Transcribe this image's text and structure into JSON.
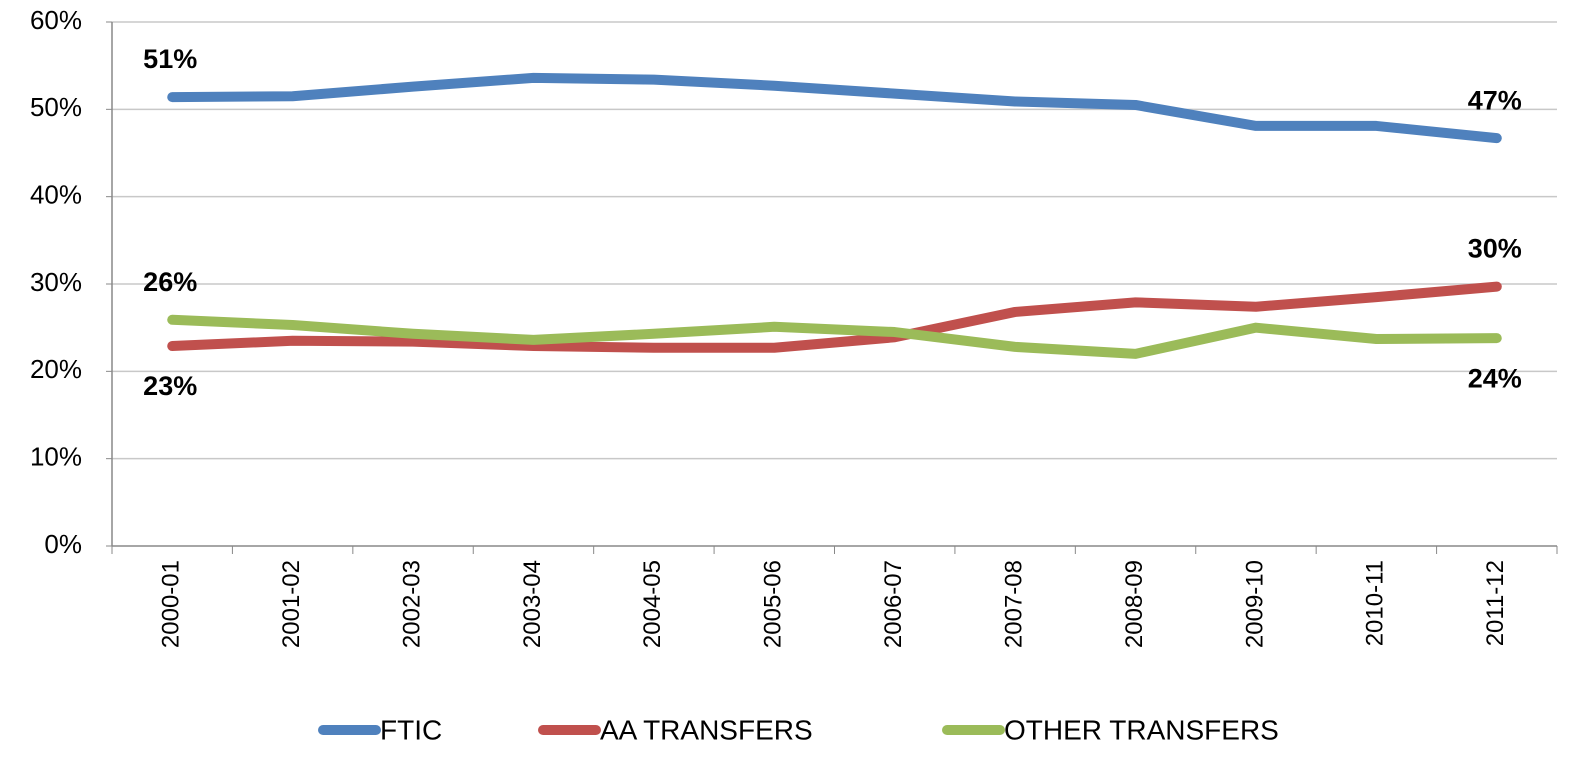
{
  "chart_data": {
    "type": "line",
    "categories": [
      "2000-01",
      "2001-02",
      "2002-03",
      "2003-04",
      "2004-05",
      "2005-06",
      "2006-07",
      "2007-08",
      "2008-09",
      "2009-10",
      "2010-11",
      "2011-12"
    ],
    "series": [
      {
        "name": "FTIC",
        "color": "#4f81bd",
        "values": [
          51.4,
          51.5,
          52.6,
          53.6,
          53.4,
          52.7,
          51.8,
          50.9,
          50.5,
          48.1,
          48.1,
          46.7
        ],
        "value_labels": [
          "51%",
          null,
          null,
          null,
          null,
          null,
          null,
          null,
          null,
          null,
          null,
          "47%"
        ]
      },
      {
        "name": "AA TRANSFERS",
        "color": "#c0504d",
        "values": [
          22.9,
          23.5,
          23.4,
          22.9,
          22.7,
          22.7,
          23.9,
          26.8,
          27.9,
          27.4,
          28.5,
          29.7
        ],
        "value_labels": [
          "23%",
          null,
          null,
          null,
          null,
          null,
          null,
          null,
          null,
          null,
          null,
          "30%"
        ]
      },
      {
        "name": "OTHER TRANSFERS",
        "color": "#9bbb59",
        "values": [
          25.9,
          25.3,
          24.3,
          23.6,
          24.3,
          25.1,
          24.5,
          22.8,
          22.0,
          25.0,
          23.7,
          23.8
        ],
        "value_labels": [
          "26%",
          null,
          null,
          null,
          null,
          null,
          null,
          null,
          null,
          null,
          null,
          "24%"
        ]
      }
    ],
    "ylim": [
      0,
      60
    ],
    "yticks": [
      {
        "value": 0,
        "label": "0%"
      },
      {
        "value": 10,
        "label": "10%"
      },
      {
        "value": 20,
        "label": "20%"
      },
      {
        "value": 30,
        "label": "30%"
      },
      {
        "value": 40,
        "label": "40%"
      },
      {
        "value": 50,
        "label": "50%"
      },
      {
        "value": 60,
        "label": "60%"
      }
    ],
    "grid": true,
    "legend": "bottom"
  }
}
